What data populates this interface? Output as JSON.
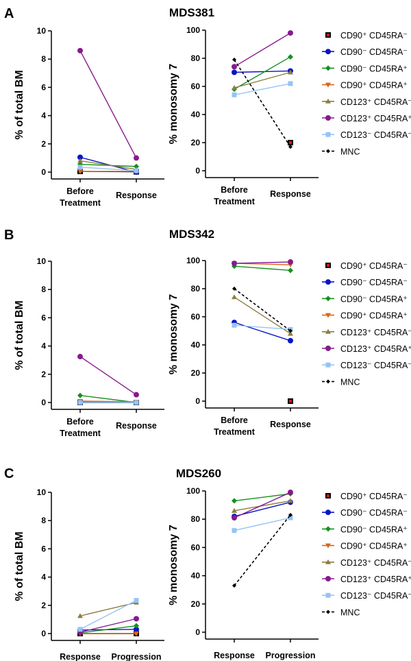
{
  "legend": {
    "series": [
      {
        "key": "cd90p_cd45ram",
        "label": "CD90⁺ CD45RA⁻",
        "color": "#000000",
        "fill": "#e01010",
        "marker": "square-red",
        "dash": false
      },
      {
        "key": "cd90m_cd45ram",
        "label": "CD90⁻ CD45RA⁻",
        "color": "#0a14c8",
        "fill": "#0a14c8",
        "marker": "circle",
        "dash": false
      },
      {
        "key": "cd90m_cd45rap",
        "label": "CD90⁻ CD45RA⁺",
        "color": "#14901e",
        "fill": "#14901e",
        "marker": "diamond",
        "dash": false
      },
      {
        "key": "cd90p_cd45rap",
        "label": "CD90⁺ CD45RA⁺",
        "color": "#d9661a",
        "fill": "#d9661a",
        "marker": "triangle-down",
        "dash": false
      },
      {
        "key": "cd123p_cd45ram",
        "label": "CD123⁺ CD45RA⁻",
        "color": "#8c7d40",
        "fill": "#8c7d40",
        "marker": "triangle-up",
        "dash": false
      },
      {
        "key": "cd123p_cd45rap",
        "label": "CD123⁺ CD45RA⁺",
        "color": "#861a8c",
        "fill": "#861a8c",
        "marker": "circle",
        "dash": false
      },
      {
        "key": "cd123m_cd45ram",
        "label": "CD123⁻ CD45RA⁻",
        "color": "#96c3f5",
        "fill": "#96c3f5",
        "marker": "square",
        "dash": false
      },
      {
        "key": "mnc",
        "label": "MNC",
        "color": "#000000",
        "fill": "#000000",
        "marker": "small-diamond",
        "dash": true
      }
    ]
  },
  "chart_data": [
    {
      "panel": "A",
      "title": "MDS381",
      "type": "line",
      "left": {
        "ylabel": "% of total BM",
        "ylim": [
          0,
          10
        ],
        "yticks": [
          0,
          2,
          4,
          6,
          8,
          10
        ],
        "categories": [
          [
            "Before",
            "Treatment"
          ],
          [
            "Response"
          ]
        ],
        "series": {
          "cd90p_cd45ram": [
            0.05,
            0.02
          ],
          "cd90m_cd45ram": [
            1.05,
            0
          ],
          "cd90m_cd45rap": [
            0.55,
            0.4
          ],
          "cd90p_cd45rap": [
            0.05,
            0.05
          ],
          "cd123p_cd45ram": [
            0.8,
            0.2
          ],
          "cd123p_cd45rap": [
            8.6,
            1.0
          ],
          "cd123m_cd45ram": [
            0.35,
            0.1
          ]
        }
      },
      "right": {
        "ylabel": "% monosomy 7",
        "ylim": [
          0,
          100
        ],
        "yticks": [
          0,
          20,
          40,
          60,
          80,
          100
        ],
        "categories": [
          [
            "Before",
            "Treatment"
          ],
          [
            "Response"
          ]
        ],
        "series": {
          "cd90p_cd45ram": [
            null,
            20
          ],
          "cd90m_cd45ram": [
            70,
            71
          ],
          "cd90m_cd45rap": [
            58,
            81
          ],
          "cd90p_cd45rap": [
            null,
            null
          ],
          "cd123p_cd45ram": [
            59,
            70
          ],
          "cd123p_cd45rap": [
            74,
            98
          ],
          "cd123m_cd45ram": [
            54,
            62
          ],
          "mnc": [
            79,
            17
          ]
        }
      }
    },
    {
      "panel": "B",
      "title": "MDS342",
      "type": "line",
      "left": {
        "ylabel": "% of total BM",
        "ylim": [
          0,
          10
        ],
        "yticks": [
          0,
          2,
          4,
          6,
          8,
          10
        ],
        "categories": [
          [
            "Before",
            "Treatment"
          ],
          [
            "Response"
          ]
        ],
        "series": {
          "cd90p_cd45ram": [
            0,
            0
          ],
          "cd90m_cd45ram": [
            0,
            0
          ],
          "cd90m_cd45rap": [
            0.5,
            0
          ],
          "cd90p_cd45rap": [
            0.1,
            0.05
          ],
          "cd123p_cd45ram": [
            0.05,
            0
          ],
          "cd123p_cd45rap": [
            3.25,
            0.55
          ],
          "cd123m_cd45ram": [
            0,
            0
          ]
        }
      },
      "right": {
        "ylabel": "% monosomy 7",
        "ylim": [
          0,
          100
        ],
        "yticks": [
          0,
          20,
          40,
          60,
          80,
          100
        ],
        "categories": [
          [
            "Before",
            "Treatment"
          ],
          [
            "Response"
          ]
        ],
        "series": {
          "cd90p_cd45ram": [
            null,
            0
          ],
          "cd90m_cd45ram": [
            56,
            43
          ],
          "cd90m_cd45rap": [
            96,
            93
          ],
          "cd90p_cd45rap": [
            98,
            97
          ],
          "cd123p_cd45ram": [
            74,
            48
          ],
          "cd123p_cd45rap": [
            98,
            99
          ],
          "cd123m_cd45ram": [
            54,
            51
          ],
          "mnc": [
            80,
            50
          ]
        }
      }
    },
    {
      "panel": "C",
      "title": "MDS260",
      "type": "line",
      "left": {
        "ylabel": "% of total BM",
        "ylim": [
          0,
          10
        ],
        "yticks": [
          0,
          2,
          4,
          6,
          8,
          10
        ],
        "categories": [
          [
            "Response"
          ],
          [
            "Progression"
          ]
        ],
        "series": {
          "cd90p_cd45ram": [
            0,
            0
          ],
          "cd90m_cd45ram": [
            0.25,
            0.3
          ],
          "cd90m_cd45rap": [
            0.05,
            0.55
          ],
          "cd90p_cd45rap": [
            0,
            0
          ],
          "cd123p_cd45ram": [
            1.25,
            2.2
          ],
          "cd123p_cd45rap": [
            0.1,
            1.05
          ],
          "cd123m_cd45ram": [
            0.3,
            2.35
          ]
        }
      },
      "right": {
        "ylabel": "% monosomy 7",
        "ylim": [
          0,
          100
        ],
        "yticks": [
          0,
          20,
          40,
          60,
          80,
          100
        ],
        "categories": [
          [
            "Response"
          ],
          [
            "Progression"
          ]
        ],
        "series": {
          "cd90p_cd45ram": [
            null,
            null
          ],
          "cd90m_cd45ram": [
            82,
            92
          ],
          "cd90m_cd45rap": [
            93,
            98
          ],
          "cd90p_cd45rap": [
            null,
            null
          ],
          "cd123p_cd45ram": [
            86,
            93
          ],
          "cd123p_cd45rap": [
            81,
            99
          ],
          "cd123m_cd45ram": [
            72,
            81
          ],
          "mnc": [
            33,
            83
          ]
        }
      }
    }
  ]
}
